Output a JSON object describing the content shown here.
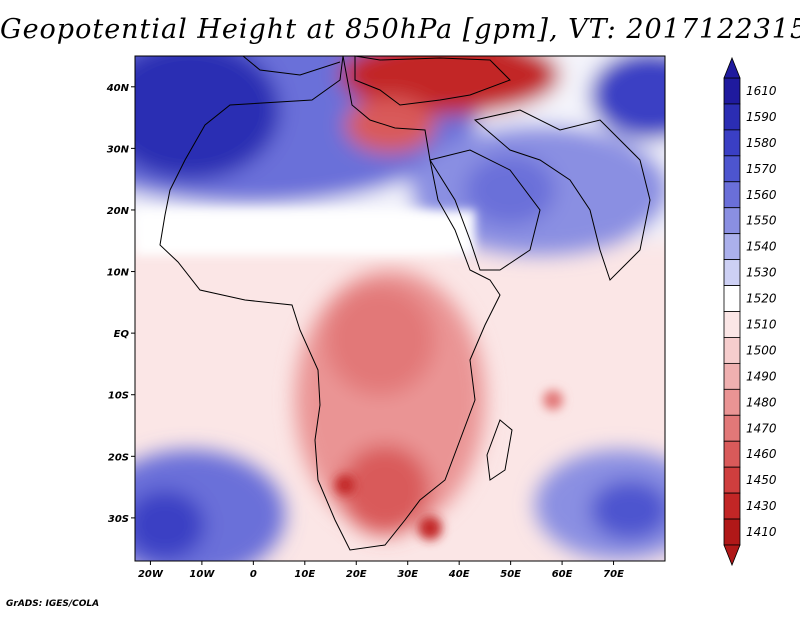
{
  "title": "Geopotential Height at 850hPa [gpm], VT: 2017122315",
  "credit": "GrADS: IGES/COLA",
  "map": {
    "lon_range": [
      -23,
      80
    ],
    "lat_range": [
      -37,
      45
    ],
    "lon_ticks": [
      "20W",
      "10W",
      "0",
      "10E",
      "20E",
      "30E",
      "40E",
      "50E",
      "60E",
      "70E"
    ],
    "lat_ticks": [
      "40N",
      "30N",
      "20N",
      "10N",
      "EQ",
      "10S",
      "20S",
      "30S"
    ]
  },
  "colorbar": {
    "labels": [
      "1610",
      "1590",
      "1580",
      "1570",
      "1560",
      "1550",
      "1540",
      "1530",
      "1520",
      "1510",
      "1500",
      "1490",
      "1480",
      "1470",
      "1460",
      "1450",
      "1430",
      "1410"
    ],
    "colors": [
      "#1f1a9e",
      "#2b2db3",
      "#3a3fc4",
      "#4d55cf",
      "#6a6fd9",
      "#8a8fe2",
      "#abb0ec",
      "#cdd0f4",
      "#ffffff",
      "#fbe6e6",
      "#f6cdcd",
      "#f0b0b0",
      "#ea9494",
      "#e27878",
      "#d95a5a",
      "#cf3e3e",
      "#c22626",
      "#b01818"
    ]
  }
}
